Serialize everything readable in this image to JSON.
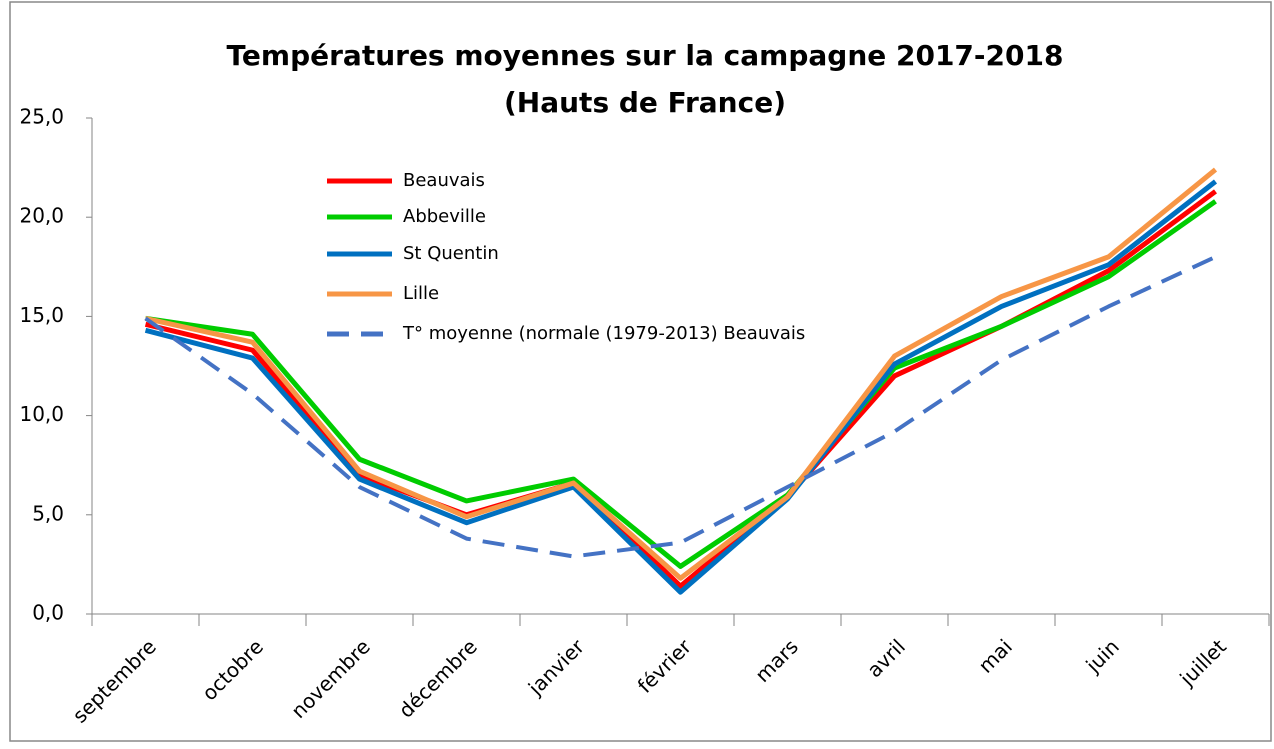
{
  "chart_data": {
    "type": "line",
    "title": [
      "Températures moyennes sur la campagne 2017-2018",
      "(Hauts de France)"
    ],
    "categories": [
      "septembre",
      "octobre",
      "novembre",
      "décembre",
      "janvier",
      "février",
      "mars",
      "avril",
      "mai",
      "juin",
      "juillet"
    ],
    "series": [
      {
        "name": "Beauvais",
        "color": "#ff0000",
        "values": [
          14.6,
          13.3,
          7.0,
          5.0,
          6.6,
          1.4,
          5.9,
          12.0,
          14.5,
          17.3,
          21.3
        ]
      },
      {
        "name": "Abbeville",
        "color": "#00cc00",
        "values": [
          14.9,
          14.1,
          7.8,
          5.7,
          6.8,
          2.4,
          6.0,
          12.4,
          14.5,
          17.0,
          20.8
        ]
      },
      {
        "name": "St Quentin",
        "color": "#0070c0",
        "values": [
          14.3,
          12.9,
          6.8,
          4.6,
          6.4,
          1.1,
          5.8,
          12.6,
          15.5,
          17.6,
          21.8
        ]
      },
      {
        "name": "Lille",
        "color": "#f79646",
        "values": [
          14.9,
          13.7,
          7.2,
          4.9,
          6.6,
          1.8,
          5.9,
          13.0,
          16.0,
          18.0,
          22.4
        ]
      },
      {
        "name": "T° moyenne (normale (1979-2013) Beauvais",
        "color": "#4472c4",
        "dashed": true,
        "values": [
          14.9,
          11.1,
          6.4,
          3.8,
          2.9,
          3.6,
          6.4,
          9.2,
          12.8,
          15.5,
          18.0
        ]
      }
    ],
    "ylim": [
      0,
      25
    ],
    "yticks": [
      {
        "value": 0,
        "label": "0,0"
      },
      {
        "value": 5,
        "label": "5,0"
      },
      {
        "value": 10,
        "label": "10,0"
      },
      {
        "value": 15,
        "label": "15,0"
      },
      {
        "value": 20,
        "label": "20,0"
      },
      {
        "value": 25,
        "label": "25,0"
      }
    ],
    "grid": false
  }
}
